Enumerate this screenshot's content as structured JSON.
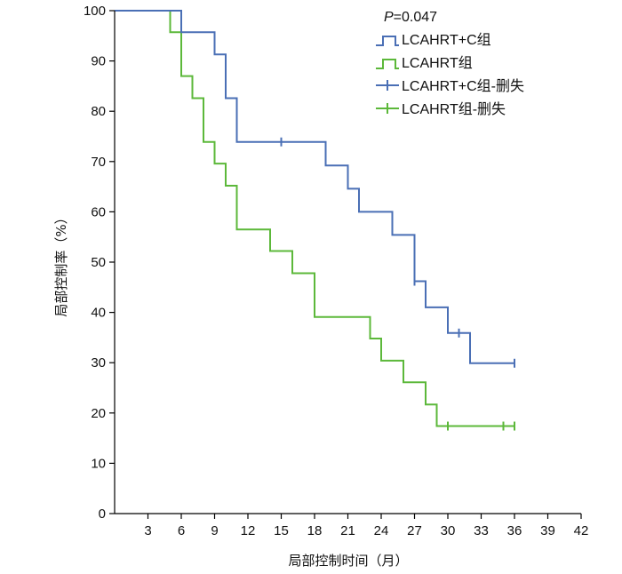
{
  "chart_data": {
    "type": "line",
    "subtype": "kaplan-meier",
    "xlabel": "局部控制时间（月）",
    "ylabel": "局部控制率（%）",
    "xlim": [
      0,
      42
    ],
    "ylim": [
      0,
      100
    ],
    "xticks": [
      3,
      6,
      9,
      12,
      15,
      18,
      21,
      24,
      27,
      30,
      33,
      36,
      39,
      42
    ],
    "yticks": [
      0,
      10,
      20,
      30,
      40,
      50,
      60,
      70,
      80,
      90,
      100
    ],
    "grid": false,
    "legend_position": "top-right",
    "annotation": {
      "italic": "P",
      "text": "=0.047"
    },
    "series": [
      {
        "name": "LCAHRT+C组",
        "censor_name": "LCAHRT+C组-删失",
        "color": "#4a6fb5",
        "steps": [
          [
            0,
            100
          ],
          [
            6,
            100
          ],
          [
            6,
            95.7
          ],
          [
            9,
            95.7
          ],
          [
            9,
            91.3
          ],
          [
            10,
            91.3
          ],
          [
            10,
            82.6
          ],
          [
            11,
            82.6
          ],
          [
            11,
            73.9
          ],
          [
            19,
            73.9
          ],
          [
            19,
            69.2
          ],
          [
            21,
            69.2
          ],
          [
            21,
            64.6
          ],
          [
            22,
            64.6
          ],
          [
            22,
            60
          ],
          [
            25,
            60
          ],
          [
            25,
            55.4
          ],
          [
            27,
            55.4
          ],
          [
            27,
            46.2
          ],
          [
            28,
            46.2
          ],
          [
            28,
            41
          ],
          [
            30,
            41
          ],
          [
            30,
            35.9
          ],
          [
            32,
            35.9
          ],
          [
            32,
            29.9
          ],
          [
            36,
            29.9
          ]
        ],
        "censored": [
          [
            15,
            73.9
          ],
          [
            27,
            46.2
          ],
          [
            31,
            35.9
          ],
          [
            36,
            29.9
          ]
        ]
      },
      {
        "name": "LCAHRT组",
        "censor_name": "LCAHRT组-删失",
        "color": "#5cb83a",
        "steps": [
          [
            0,
            100
          ],
          [
            5,
            100
          ],
          [
            5,
            95.7
          ],
          [
            6,
            95.7
          ],
          [
            6,
            87
          ],
          [
            7,
            87
          ],
          [
            7,
            82.6
          ],
          [
            8,
            82.6
          ],
          [
            8,
            73.9
          ],
          [
            9,
            73.9
          ],
          [
            9,
            69.6
          ],
          [
            10,
            69.6
          ],
          [
            10,
            65.2
          ],
          [
            11,
            65.2
          ],
          [
            11,
            56.5
          ],
          [
            14,
            56.5
          ],
          [
            14,
            52.2
          ],
          [
            16,
            52.2
          ],
          [
            16,
            47.8
          ],
          [
            18,
            47.8
          ],
          [
            18,
            39.1
          ],
          [
            23,
            39.1
          ],
          [
            23,
            34.8
          ],
          [
            24,
            34.8
          ],
          [
            24,
            30.4
          ],
          [
            26,
            30.4
          ],
          [
            26,
            26.1
          ],
          [
            28,
            26.1
          ],
          [
            28,
            21.7
          ],
          [
            29,
            21.7
          ],
          [
            29,
            17.4
          ],
          [
            36,
            17.4
          ]
        ],
        "censored": [
          [
            30,
            17.4
          ],
          [
            35,
            17.4
          ],
          [
            36,
            17.4
          ]
        ]
      }
    ]
  }
}
